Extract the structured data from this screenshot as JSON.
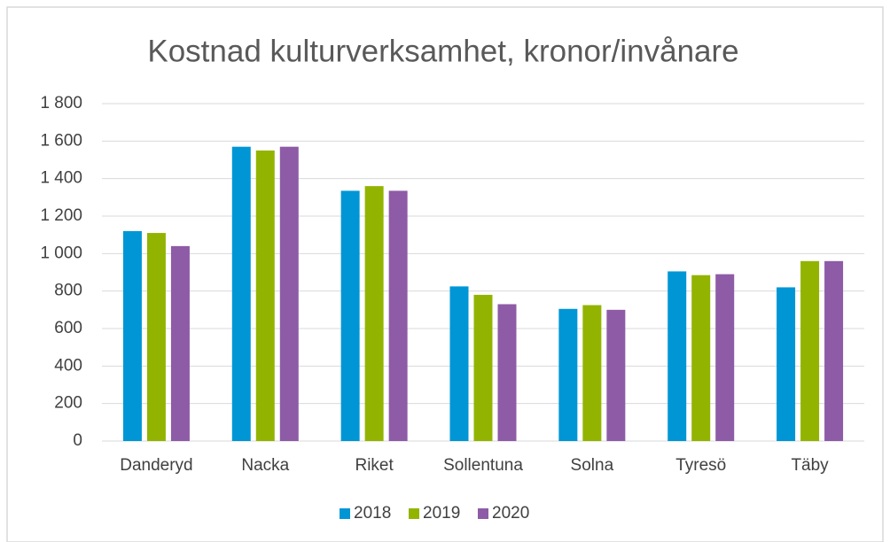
{
  "chart_data": {
    "type": "bar",
    "title": "Kostnad kulturverksamhet, kronor/invånare",
    "categories": [
      "Danderyd",
      "Nacka",
      "Riket",
      "Sollentuna",
      "Solna",
      "Tyresö",
      "Täby"
    ],
    "series": [
      {
        "name": "2018",
        "color": "#0096d6",
        "values": [
          1120,
          1570,
          1335,
          825,
          705,
          905,
          820
        ]
      },
      {
        "name": "2019",
        "color": "#92b400",
        "values": [
          1110,
          1550,
          1360,
          780,
          725,
          885,
          960
        ]
      },
      {
        "name": "2020",
        "color": "#8e5ba6",
        "values": [
          1040,
          1570,
          1335,
          730,
          700,
          890,
          960
        ]
      }
    ],
    "ylim": [
      0,
      1800
    ],
    "yticks": [
      0,
      200,
      400,
      600,
      800,
      {
        "value": 1000,
        "label": "1 000"
      },
      {
        "value": 1200,
        "label": "1 200"
      },
      {
        "value": 1400,
        "label": "1 400"
      },
      {
        "value": 1600,
        "label": "1 600"
      },
      {
        "value": 1800,
        "label": "1 800"
      }
    ],
    "grid": true,
    "legend": "bottom"
  }
}
